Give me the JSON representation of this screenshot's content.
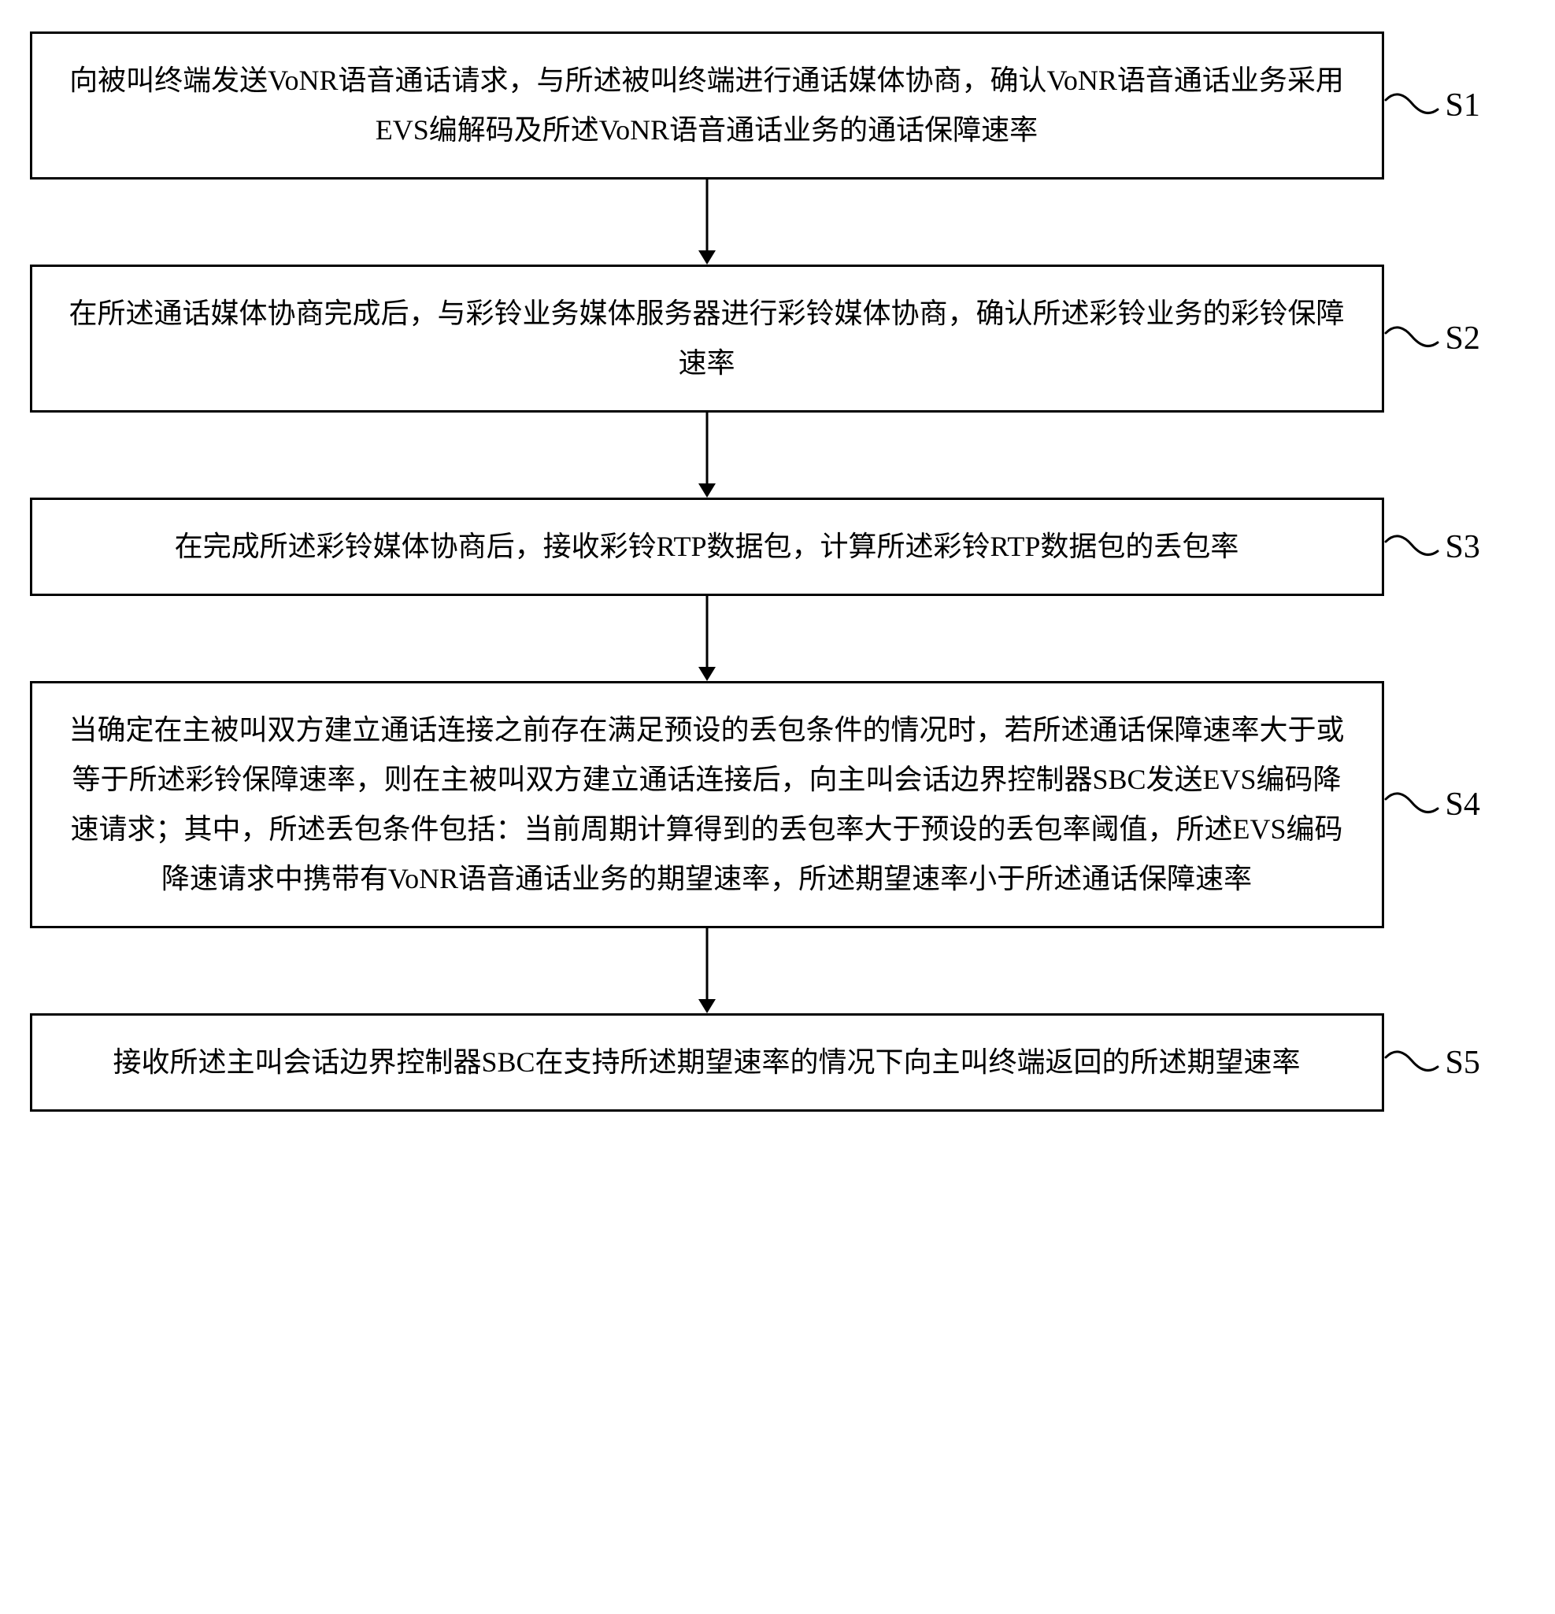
{
  "flowchart": {
    "type": "flowchart",
    "layout": "vertical",
    "background_color": "#ffffff",
    "box_border_color": "#000000",
    "box_border_width": 3,
    "text_color": "#000000",
    "font_family": "SimSun",
    "step_fontsize": 36,
    "label_fontsize": 42,
    "arrow_color": "#000000",
    "arrow_length": 90,
    "arrow_stroke_width": 3,
    "arrow_head_width": 22,
    "arrow_head_height": 18,
    "tilde_stroke_width": 3,
    "box_line_height": 1.75,
    "steps": [
      {
        "id": "S1",
        "label": "S1",
        "text": "向被叫终端发送VoNR语音通话请求，与所述被叫终端进行通话媒体协商，确认VoNR语音通话业务采用EVS编解码及所述VoNR语音通话业务的通话保障速率",
        "lines": 3
      },
      {
        "id": "S2",
        "label": "S2",
        "text": "在所述通话媒体协商完成后，与彩铃业务媒体服务器进行彩铃媒体协商，确认所述彩铃业务的彩铃保障速率",
        "lines": 2
      },
      {
        "id": "S3",
        "label": "S3",
        "text": "在完成所述彩铃媒体协商后，接收彩铃RTP数据包，计算所述彩铃RTP数据包的丢包率",
        "lines": 2
      },
      {
        "id": "S4",
        "label": "S4",
        "text": "当确定在主被叫双方建立通话连接之前存在满足预设的丢包条件的情况时，若所述通话保障速率大于或等于所述彩铃保障速率，则在主被叫双方建立通话连接后，向主叫会话边界控制器SBC发送EVS编码降速请求；其中，所述丢包条件包括：当前周期计算得到的丢包率大于预设的丢包率阈值，所述EVS编码降速请求中携带有VoNR语音通话业务的期望速率，所述期望速率小于所述通话保障速率",
        "lines": 6
      },
      {
        "id": "S5",
        "label": "S5",
        "text": "接收所述主叫会话边界控制器SBC在支持所述期望速率的情况下向主叫终端返回的所述期望速率",
        "lines": 2
      }
    ]
  }
}
